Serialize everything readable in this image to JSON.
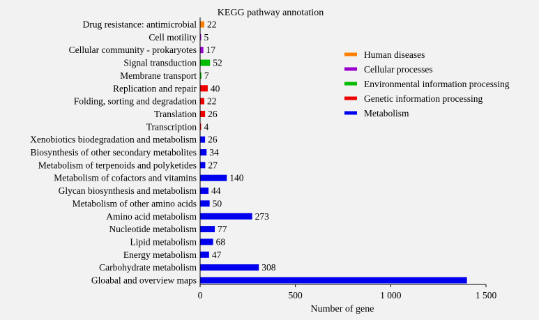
{
  "chart_data": {
    "type": "bar",
    "orientation": "horizontal",
    "title": "KEGG pathway annotation",
    "xlabel": "Number of gene",
    "ylabel": "",
    "xlim": [
      0,
      1500
    ],
    "xticks": [
      0,
      500,
      1000,
      1500
    ],
    "xtick_labels": [
      "0",
      "500",
      "1 000",
      "1 500"
    ],
    "grid": false,
    "legend_position": "top-right",
    "categories": [
      "Drug resistance: antimicrobial",
      "Cell motility",
      "Cellular community - prokaryotes",
      "Signal transduction",
      "Membrane transport",
      "Replication and repair",
      "Folding, sorting and degradation",
      "Translation",
      "Transcription",
      "Xenobiotics biodegradation and metabolism",
      "Biosynthesis of other secondary metabolites",
      "Metabolism of terpenoids and polyketides",
      "Metabolism of cofactors and vitamins",
      "Glycan biosynthesis and metabolism",
      "Metabolism of other amino acids",
      "Amino acid metabolism",
      "Nucleotide metabolism",
      "Lipid metabolism",
      "Energy metabolism",
      "Carbohydrate metabolism",
      "Gloabal and overview maps"
    ],
    "values": [
      22,
      5,
      17,
      52,
      7,
      40,
      22,
      26,
      4,
      26,
      34,
      27,
      140,
      44,
      50,
      273,
      77,
      68,
      47,
      308,
      1400
    ],
    "value_labels": [
      "22",
      "5",
      "17",
      "52",
      "7",
      "40",
      "22",
      "26",
      "4",
      "26",
      "34",
      "27",
      "140",
      "44",
      "50",
      "273",
      "77",
      "68",
      "47",
      "308",
      ""
    ],
    "groups": [
      "Human diseases",
      "Cellular processes",
      "Cellular processes",
      "Environmental information processing",
      "Environmental information processing",
      "Genetic information processing",
      "Genetic information processing",
      "Genetic information processing",
      "Genetic information processing",
      "Metabolism",
      "Metabolism",
      "Metabolism",
      "Metabolism",
      "Metabolism",
      "Metabolism",
      "Metabolism",
      "Metabolism",
      "Metabolism",
      "Metabolism",
      "Metabolism",
      "Metabolism"
    ],
    "legend": [
      {
        "name": "Human diseases",
        "color": "#ff8000"
      },
      {
        "name": "Cellular processes",
        "color": "#9900cc"
      },
      {
        "name": "Environmental information processing",
        "color": "#00bb00"
      },
      {
        "name": "Genetic information processing",
        "color": "#ee0000"
      },
      {
        "name": "Metabolism",
        "color": "#0000ee"
      }
    ]
  }
}
